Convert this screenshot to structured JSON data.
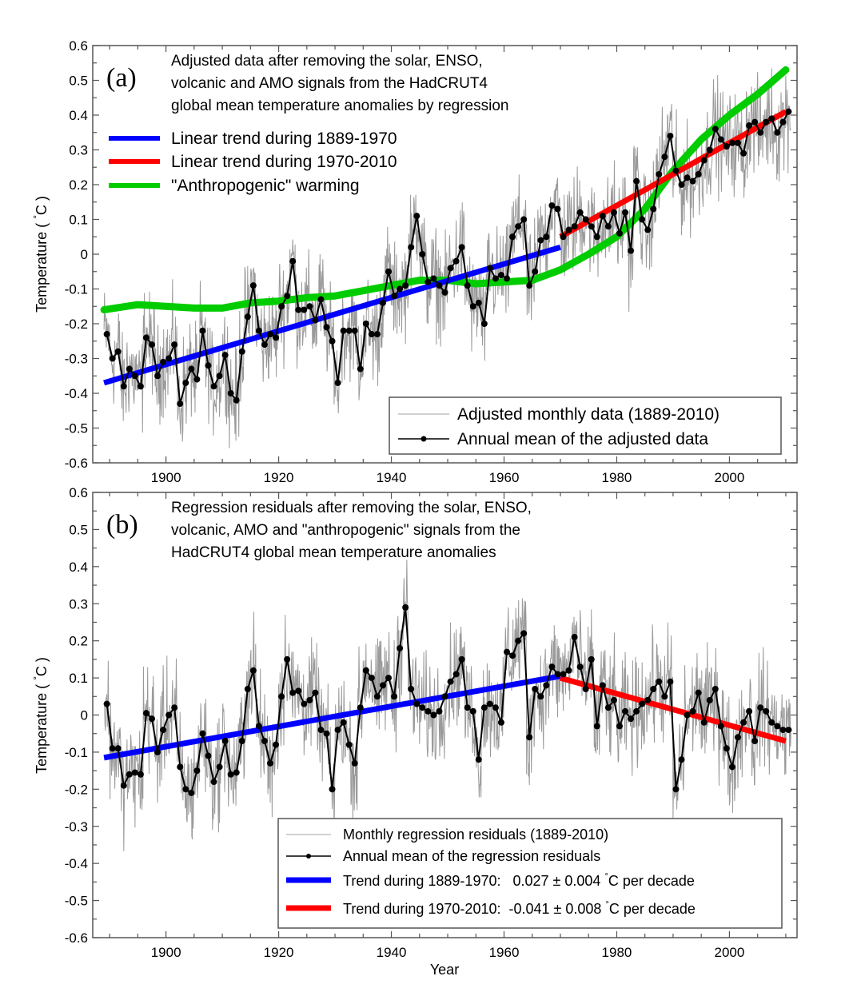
{
  "chart_data": [
    {
      "type": "line",
      "panel_label": "(a)",
      "title": "Adjusted data after removing the solar, ENSO, volcanic and AMO signals from the HadCRUT4 global mean temperature anomalies by regression",
      "title_lines": [
        "Adjusted data after removing the solar, ENSO,",
        "volcanic and AMO signals from the HadCRUT4",
        "global mean temperature anomalies by regression"
      ],
      "xlabel": "",
      "ylabel": "Temperature ( °C )",
      "ylabel_parts": [
        "Temperature  ( ",
        "°",
        "C )"
      ],
      "xlim": [
        1887,
        2012
      ],
      "ylim": [
        -0.6,
        0.6
      ],
      "xticks": [
        1900,
        1920,
        1940,
        1960,
        1980,
        2000
      ],
      "yticks": [
        -0.6,
        -0.5,
        -0.4,
        -0.3,
        -0.2,
        -0.1,
        0,
        0.1,
        0.2,
        0.3,
        0.4,
        0.5,
        0.6
      ],
      "ytick_labels": [
        "-0.6",
        "-0.5",
        "-0.4",
        "-0.3",
        "-0.2",
        "-0.1",
        "0",
        "0.1",
        "0.2",
        "0.3",
        "0.4",
        "0.5",
        "0.6"
      ],
      "grid": false,
      "legend_top": {
        "placement": "top-left",
        "entries": [
          {
            "label": "Linear trend during 1889-1970",
            "color": "#0000ff"
          },
          {
            "label": "Linear trend during 1970-2010",
            "color": "#ff0000"
          },
          {
            "label": "\"Anthropogenic\" warming",
            "color": "#00cc00"
          }
        ]
      },
      "legend_bottom": {
        "placement": "bottom-right",
        "entries": [
          {
            "label": "Adjusted monthly data (1889-2010)",
            "color": "#a0a0a0",
            "style": "thin-line"
          },
          {
            "label": "Annual mean of the adjusted data",
            "color": "#000000",
            "style": "line-dot"
          }
        ]
      },
      "monthly_noise_amplitude": 0.1,
      "x": [
        1889,
        1890,
        1891,
        1892,
        1893,
        1894,
        1895,
        1896,
        1897,
        1898,
        1899,
        1900,
        1901,
        1902,
        1903,
        1904,
        1905,
        1906,
        1907,
        1908,
        1909,
        1910,
        1911,
        1912,
        1913,
        1914,
        1915,
        1916,
        1917,
        1918,
        1919,
        1920,
        1921,
        1922,
        1923,
        1924,
        1925,
        1926,
        1927,
        1928,
        1929,
        1930,
        1931,
        1932,
        1933,
        1934,
        1935,
        1936,
        1937,
        1938,
        1939,
        1940,
        1941,
        1942,
        1943,
        1944,
        1945,
        1946,
        1947,
        1948,
        1949,
        1950,
        1951,
        1952,
        1953,
        1954,
        1955,
        1956,
        1957,
        1958,
        1959,
        1960,
        1961,
        1962,
        1963,
        1964,
        1965,
        1966,
        1967,
        1968,
        1969,
        1970,
        1971,
        1972,
        1973,
        1974,
        1975,
        1976,
        1977,
        1978,
        1979,
        1980,
        1981,
        1982,
        1983,
        1984,
        1985,
        1986,
        1987,
        1988,
        1989,
        1990,
        1991,
        1992,
        1993,
        1994,
        1995,
        1996,
        1997,
        1998,
        1999,
        2000,
        2001,
        2002,
        2003,
        2004,
        2005,
        2006,
        2007,
        2008,
        2009,
        2010
      ],
      "series": [
        {
          "name": "Annual mean of the adjusted data",
          "color": "#000000",
          "values": [
            -0.23,
            -0.3,
            -0.28,
            -0.38,
            -0.33,
            -0.35,
            -0.38,
            -0.24,
            -0.26,
            -0.35,
            -0.31,
            -0.3,
            -0.26,
            -0.43,
            -0.37,
            -0.33,
            -0.36,
            -0.22,
            -0.32,
            -0.38,
            -0.35,
            -0.29,
            -0.4,
            -0.42,
            -0.28,
            -0.18,
            -0.09,
            -0.22,
            -0.26,
            -0.23,
            -0.24,
            -0.15,
            -0.12,
            -0.02,
            -0.16,
            -0.16,
            -0.15,
            -0.19,
            -0.13,
            -0.21,
            -0.25,
            -0.37,
            -0.22,
            -0.22,
            -0.22,
            -0.33,
            -0.2,
            -0.23,
            -0.23,
            -0.14,
            -0.05,
            -0.12,
            -0.1,
            -0.09,
            0.02,
            0.11,
            0.0,
            -0.08,
            -0.07,
            -0.09,
            -0.11,
            -0.04,
            -0.02,
            0.02,
            -0.09,
            -0.15,
            -0.14,
            -0.2,
            -0.04,
            -0.07,
            -0.06,
            -0.07,
            0.05,
            0.08,
            0.1,
            -0.09,
            -0.05,
            0.04,
            0.05,
            0.14,
            0.13,
            0.05,
            0.07,
            0.08,
            0.12,
            0.1,
            0.08,
            0.05,
            0.11,
            0.08,
            0.12,
            0.06,
            0.12,
            0.01,
            0.21,
            0.1,
            0.07,
            0.13,
            0.23,
            0.28,
            0.34,
            0.24,
            0.2,
            0.22,
            0.21,
            0.23,
            0.27,
            0.3,
            0.36,
            0.33,
            0.31,
            0.32,
            0.32,
            0.29,
            0.37,
            0.38,
            0.35,
            0.38,
            0.39,
            0.35,
            0.38,
            0.41
          ]
        },
        {
          "name": "Linear trend during 1889-1970",
          "color": "#0000ff",
          "x": [
            1889,
            1970
          ],
          "values": [
            -0.37,
            0.02
          ]
        },
        {
          "name": "Linear trend during 1970-2010",
          "color": "#ff0000",
          "x": [
            1970,
            2010
          ],
          "values": [
            0.05,
            0.41
          ]
        },
        {
          "name": "\"Anthropogenic\" warming",
          "color": "#00cc00",
          "x": [
            1889,
            1895,
            1900,
            1905,
            1910,
            1915,
            1920,
            1925,
            1930,
            1935,
            1940,
            1945,
            1950,
            1955,
            1960,
            1965,
            1970,
            1975,
            1980,
            1985,
            1990,
            1995,
            2000,
            2005,
            2010
          ],
          "values": [
            -0.16,
            -0.145,
            -0.15,
            -0.155,
            -0.155,
            -0.14,
            -0.135,
            -0.125,
            -0.12,
            -0.105,
            -0.09,
            -0.075,
            -0.075,
            -0.085,
            -0.08,
            -0.075,
            -0.045,
            0.0,
            0.05,
            0.13,
            0.24,
            0.33,
            0.4,
            0.46,
            0.53
          ]
        }
      ]
    },
    {
      "type": "line",
      "panel_label": "(b)",
      "title": "Regression residuals after removing the solar, ENSO, volcanic, AMO and \"anthropogenic\" signals from the HadCRUT4 global mean temperature anomalies",
      "title_lines": [
        "Regression residuals after removing the solar, ENSO,",
        "volcanic, AMO and \"anthropogenic\" signals from the",
        "HadCRUT4 global mean temperature anomalies"
      ],
      "xlabel": "Year",
      "ylabel": "Temperature ( °C )",
      "ylabel_parts": [
        "Temperature  ( ",
        "°",
        "C )"
      ],
      "xlim": [
        1887,
        2012
      ],
      "ylim": [
        -0.6,
        0.6
      ],
      "xticks": [
        1900,
        1920,
        1940,
        1960,
        1980,
        2000
      ],
      "yticks": [
        -0.6,
        -0.5,
        -0.4,
        -0.3,
        -0.2,
        -0.1,
        0,
        0.1,
        0.2,
        0.3,
        0.4,
        0.5,
        0.6
      ],
      "ytick_labels": [
        "-0.6",
        "-0.5",
        "-0.4",
        "-0.3",
        "-0.2",
        "-0.1",
        "0",
        "0.1",
        "0.2",
        "0.3",
        "0.4",
        "0.5",
        "0.6"
      ],
      "grid": false,
      "legend_bottom": {
        "placement": "bottom-right",
        "entries": [
          {
            "label": "Monthly regression residuals (1889-2010)",
            "color": "#a0a0a0",
            "style": "thin-line"
          },
          {
            "label": "Annual mean of the regression residuals",
            "color": "#000000",
            "style": "line-dot"
          },
          {
            "label": "Trend during 1889-1970:   0.027 ± 0.004 °C per decade",
            "parts": [
              "Trend during 1889-1970:   0.027 ± 0.004 ",
              "°",
              "C per decade"
            ],
            "color": "#0000ff",
            "style": "thick-line"
          },
          {
            "label": "Trend during 1970-2010:  -0.041 ± 0.008 °C per decade",
            "parts": [
              "Trend during 1970-2010:  -0.041 ± 0.008 ",
              "°",
              "C per decade"
            ],
            "color": "#ff0000",
            "style": "thick-line"
          }
        ]
      },
      "monthly_noise_amplitude": 0.1,
      "x": [
        1889,
        1890,
        1891,
        1892,
        1893,
        1894,
        1895,
        1896,
        1897,
        1898,
        1899,
        1900,
        1901,
        1902,
        1903,
        1904,
        1905,
        1906,
        1907,
        1908,
        1909,
        1910,
        1911,
        1912,
        1913,
        1914,
        1915,
        1916,
        1917,
        1918,
        1919,
        1920,
        1921,
        1922,
        1923,
        1924,
        1925,
        1926,
        1927,
        1928,
        1929,
        1930,
        1931,
        1932,
        1933,
        1934,
        1935,
        1936,
        1937,
        1938,
        1939,
        1940,
        1941,
        1942,
        1943,
        1944,
        1945,
        1946,
        1947,
        1948,
        1949,
        1950,
        1951,
        1952,
        1953,
        1954,
        1955,
        1956,
        1957,
        1958,
        1959,
        1960,
        1961,
        1962,
        1963,
        1964,
        1965,
        1966,
        1967,
        1968,
        1969,
        1970,
        1971,
        1972,
        1973,
        1974,
        1975,
        1976,
        1977,
        1978,
        1979,
        1980,
        1981,
        1982,
        1983,
        1984,
        1985,
        1986,
        1987,
        1988,
        1989,
        1990,
        1991,
        1992,
        1993,
        1994,
        1995,
        1996,
        1997,
        1998,
        1999,
        2000,
        2001,
        2002,
        2003,
        2004,
        2005,
        2006,
        2007,
        2008,
        2009,
        2010
      ],
      "series": [
        {
          "name": "Annual mean of the regression residuals",
          "color": "#000000",
          "values": [
            0.03,
            -0.09,
            -0.09,
            -0.19,
            -0.16,
            -0.155,
            -0.16,
            0.005,
            -0.01,
            -0.1,
            -0.04,
            0.0,
            0.02,
            -0.14,
            -0.2,
            -0.21,
            -0.15,
            -0.05,
            -0.11,
            -0.18,
            -0.14,
            -0.07,
            -0.16,
            -0.155,
            -0.07,
            0.07,
            0.12,
            -0.03,
            -0.07,
            -0.13,
            -0.08,
            0.05,
            0.15,
            0.06,
            0.065,
            0.03,
            0.04,
            0.06,
            -0.04,
            -0.05,
            -0.2,
            -0.04,
            -0.02,
            -0.08,
            -0.13,
            0.02,
            0.12,
            0.1,
            0.05,
            0.08,
            0.1,
            0.05,
            0.18,
            0.29,
            0.07,
            0.03,
            0.02,
            0.01,
            0.0,
            0.01,
            0.05,
            0.09,
            0.11,
            0.15,
            0.02,
            0.01,
            -0.12,
            0.02,
            0.03,
            0.02,
            -0.02,
            0.17,
            0.16,
            0.2,
            0.22,
            -0.06,
            0.07,
            0.05,
            0.08,
            0.13,
            0.11,
            0.11,
            0.12,
            0.21,
            0.13,
            0.07,
            0.15,
            -0.03,
            0.08,
            0.02,
            0.04,
            -0.03,
            0.01,
            -0.01,
            0.01,
            0.03,
            0.04,
            0.07,
            0.09,
            0.05,
            0.09,
            -0.2,
            -0.12,
            0.0,
            0.01,
            0.06,
            -0.02,
            0.04,
            0.07,
            -0.03,
            -0.09,
            -0.14,
            -0.06,
            -0.02,
            0.01,
            -0.07,
            0.02,
            0.01,
            -0.02,
            -0.03,
            -0.04,
            -0.04
          ]
        },
        {
          "name": "Trend during 1889-1970",
          "color": "#0000ff",
          "x": [
            1889,
            1970
          ],
          "values": [
            -0.115,
            0.105
          ]
        },
        {
          "name": "Trend during 1970-2010",
          "color": "#ff0000",
          "x": [
            1970,
            2010
          ],
          "values": [
            0.1,
            -0.07
          ]
        }
      ]
    }
  ]
}
